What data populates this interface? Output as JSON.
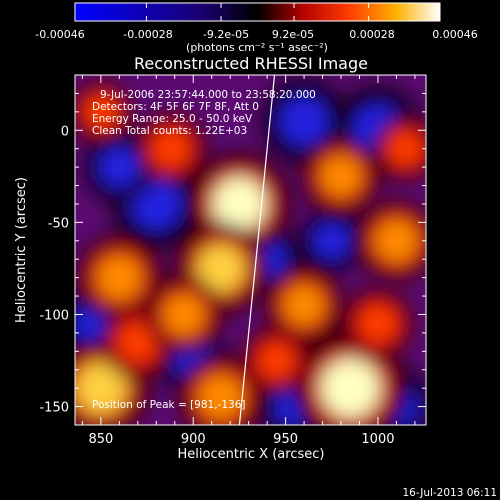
{
  "colorbar": {
    "ticks": [
      "-0.00046",
      "-0.00028",
      "-9.2e-05",
      "9.2e-05",
      "0.00028",
      "0.00046"
    ],
    "unit_label": "(photons cm⁻² s⁻¹ asec⁻²)",
    "colors": [
      "#0000ff",
      "#000000",
      "#a00000",
      "#ff3c00",
      "#ffa000",
      "#ffff99",
      "#ffffff"
    ]
  },
  "chart_data": {
    "type": "heatmap",
    "title": "Reconstructed RHESSI Image",
    "xlabel": "Heliocentric X (arcsec)",
    "ylabel": "Heliocentric Y (arcsec)",
    "xlim": [
      836,
      1026
    ],
    "ylim": [
      -160,
      30
    ],
    "x_ticks": [
      850,
      900,
      950,
      1000
    ],
    "y_ticks": [
      0,
      -50,
      -100,
      -150
    ],
    "colorscale_range": [
      -0.00046,
      0.00046
    ],
    "annotations": [
      "9-Jul-2006 23:57:44.000 to 23:58:20.000",
      "Detectors: 4F 5F 6F 7F 8F, Att 0",
      "Energy Range: 25.0 - 50.0 keV",
      "Clean    Total counts: 1.22E+03"
    ],
    "peak_label": "Position of Peak = [981,-136]",
    "peak": [
      981,
      -136
    ],
    "hot_spots": [
      {
        "x": 925,
        "y": -40,
        "value": 0.0004
      },
      {
        "x": 915,
        "y": -75,
        "value": 0.00034
      },
      {
        "x": 860,
        "y": -80,
        "value": 0.0003
      },
      {
        "x": 985,
        "y": -140,
        "value": 0.00046
      },
      {
        "x": 850,
        "y": -140,
        "value": 0.00038
      },
      {
        "x": 915,
        "y": -145,
        "value": 0.0003
      },
      {
        "x": 1010,
        "y": -60,
        "value": 0.00028
      },
      {
        "x": 960,
        "y": -95,
        "value": 0.00026
      },
      {
        "x": 888,
        "y": -10,
        "value": 0.00022
      },
      {
        "x": 980,
        "y": -25,
        "value": 0.00026
      },
      {
        "x": 1015,
        "y": -10,
        "value": 0.00018
      },
      {
        "x": 870,
        "y": -115,
        "value": 0.00024
      },
      {
        "x": 945,
        "y": -125,
        "value": 0.0002
      },
      {
        "x": 1000,
        "y": -105,
        "value": 0.00022
      },
      {
        "x": 895,
        "y": -100,
        "value": 0.00026
      },
      {
        "x": 850,
        "y": 10,
        "value": 0.00016
      }
    ],
    "cold_spots": [
      {
        "x": 880,
        "y": -40,
        "value": -0.0003
      },
      {
        "x": 960,
        "y": 5,
        "value": -0.00028
      },
      {
        "x": 1000,
        "y": 0,
        "value": -0.0003
      },
      {
        "x": 860,
        "y": -20,
        "value": -0.0002
      },
      {
        "x": 940,
        "y": -70,
        "value": -0.00018
      },
      {
        "x": 980,
        "y": -130,
        "value": -0.00026
      },
      {
        "x": 900,
        "y": -125,
        "value": -0.00018
      },
      {
        "x": 955,
        "y": -150,
        "value": -0.0002
      },
      {
        "x": 1010,
        "y": -150,
        "value": -0.00022
      },
      {
        "x": 845,
        "y": -105,
        "value": -0.00016
      },
      {
        "x": 975,
        "y": -60,
        "value": -0.00016
      }
    ],
    "limb_line": [
      [
        944,
        30
      ],
      [
        925,
        -160
      ]
    ]
  },
  "timestamp": "16-Jul-2013 06:11"
}
